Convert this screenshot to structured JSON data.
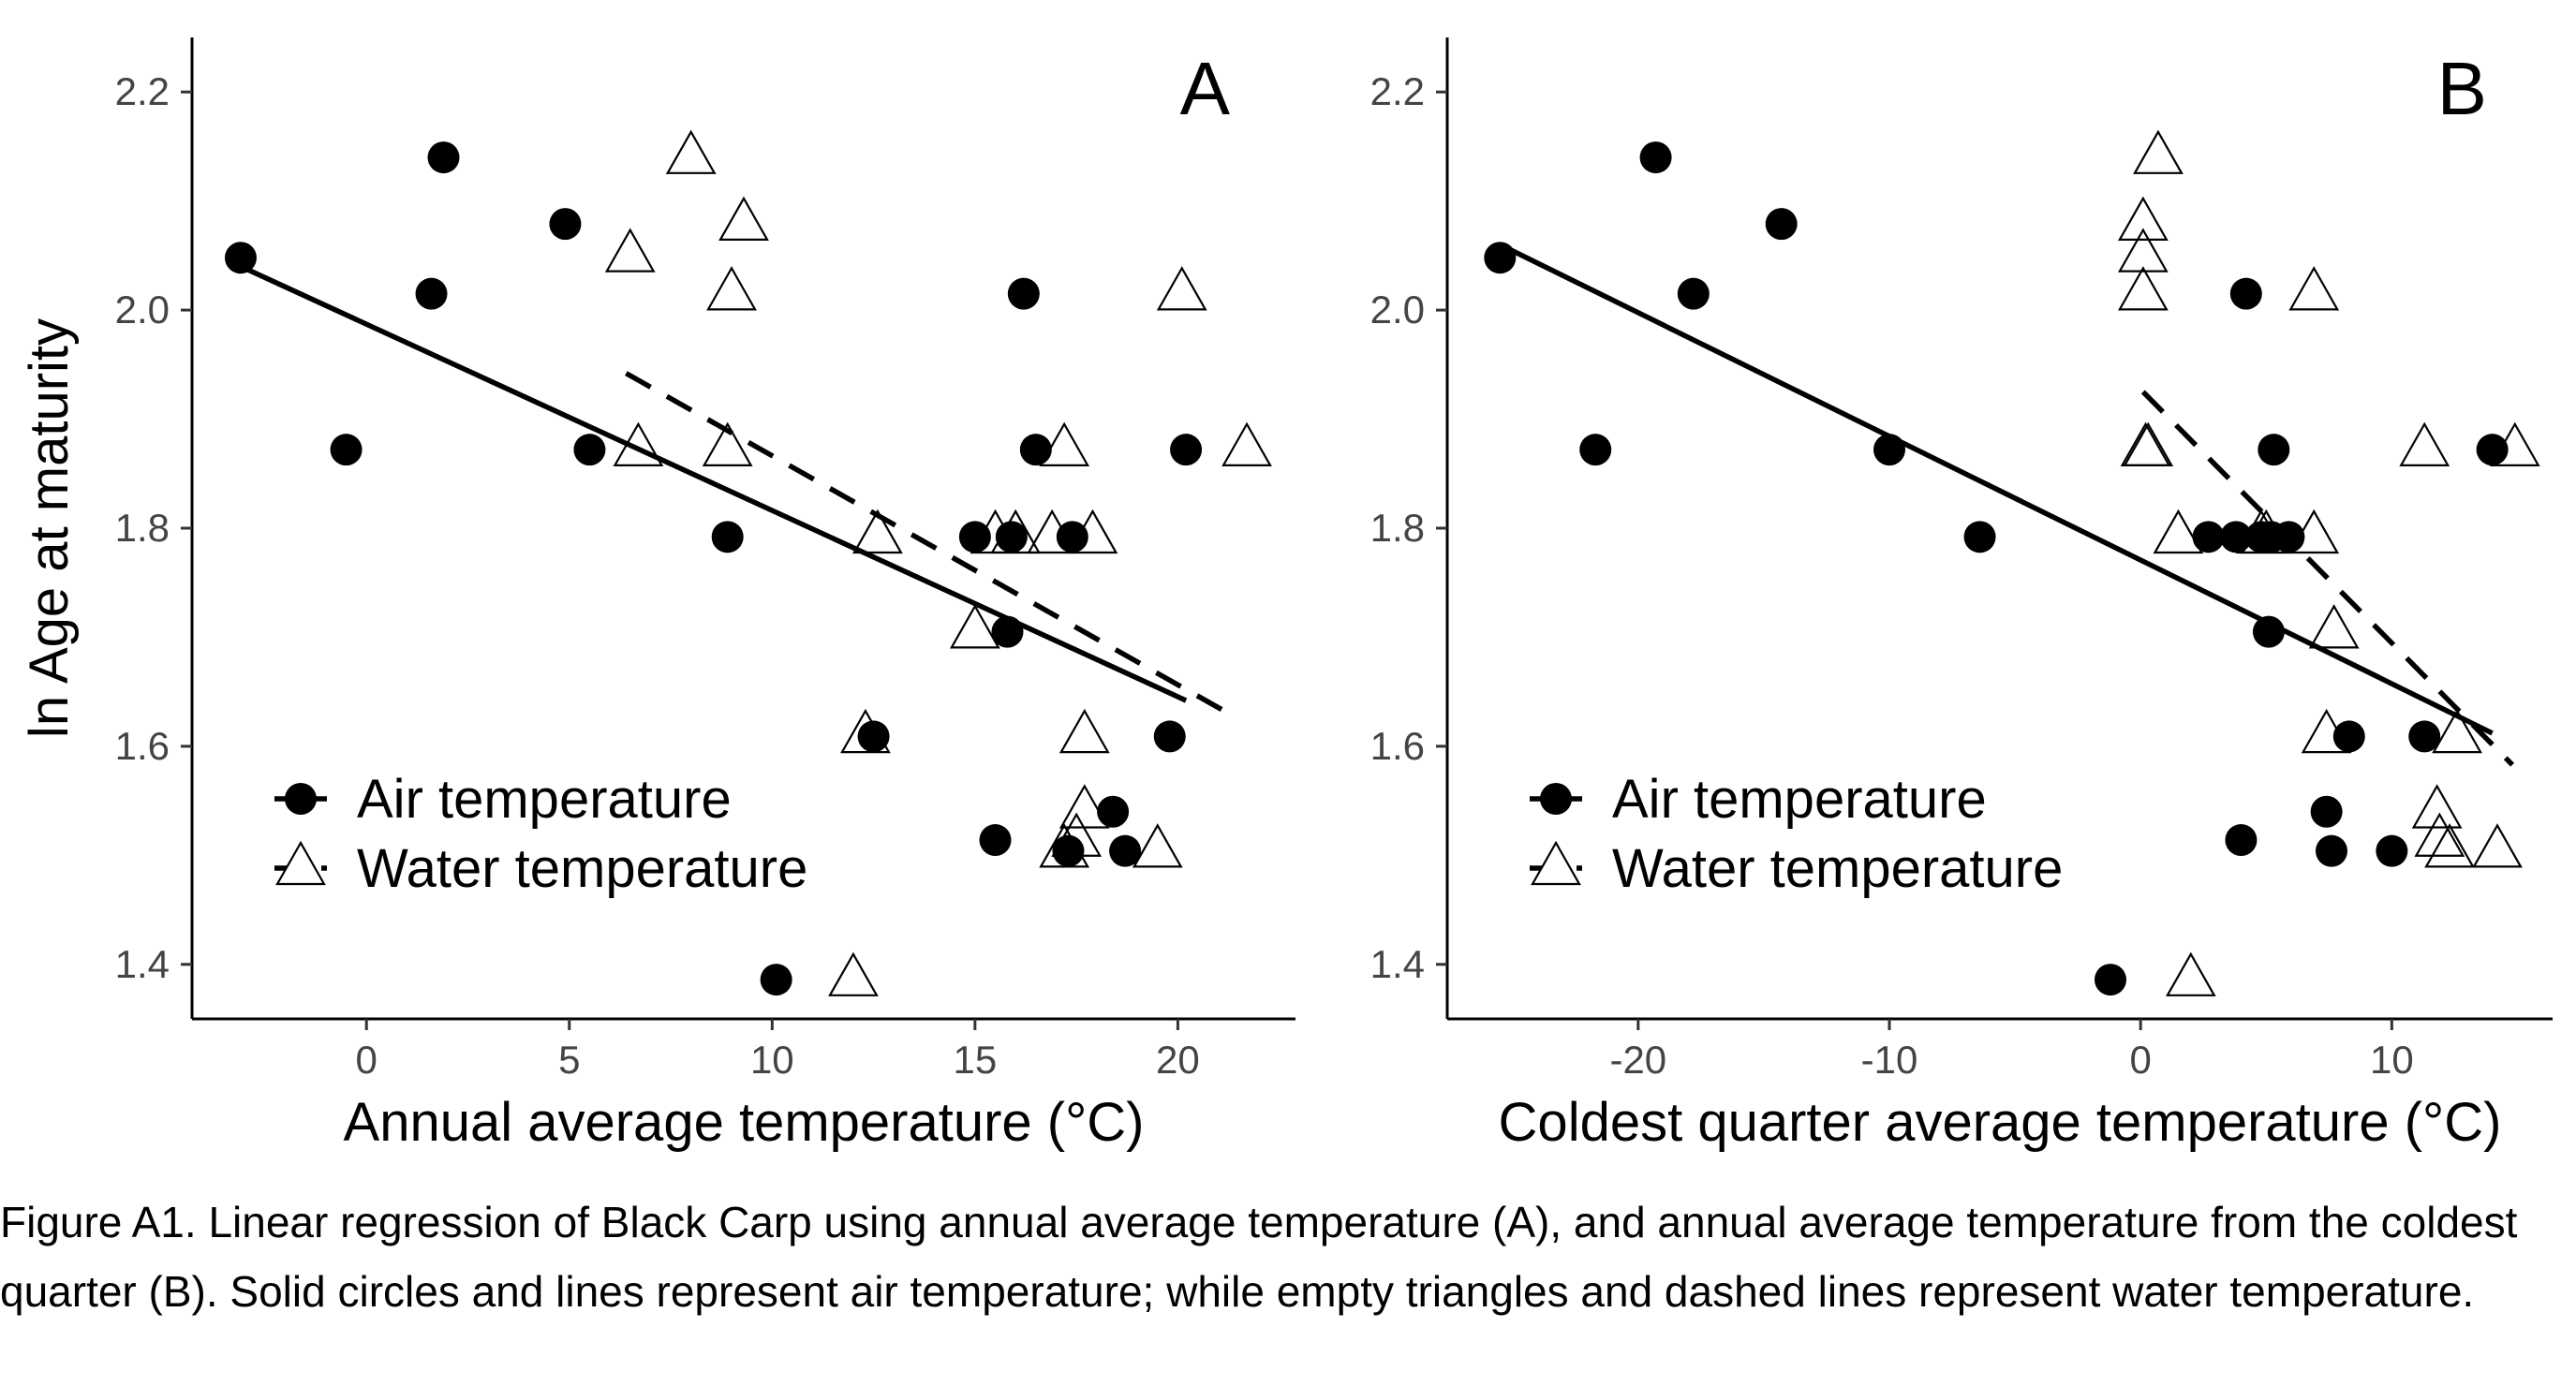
{
  "chart_data": [
    {
      "type": "scatter",
      "panel_label": "A",
      "xlabel": "Annual average temperature (°C)",
      "ylabel": "ln Age at maturity",
      "xlim": [
        -4.3,
        22.9
      ],
      "ylim": [
        1.35,
        2.25
      ],
      "xticks": [
        0,
        5,
        10,
        15,
        20
      ],
      "yticks": [
        1.4,
        1.6,
        1.8,
        2.0,
        2.2
      ],
      "xtick_labels": [
        "0",
        "5",
        "10",
        "15",
        "20"
      ],
      "ytick_labels": [
        "1.4",
        "1.6",
        "1.8",
        "2.0",
        "2.2"
      ],
      "grid": false,
      "legend_position": "bottom-left",
      "series": [
        {
          "name": "Air temperature",
          "marker": "filled-circle",
          "line": "solid",
          "points": [
            [
              -3.1,
              2.048
            ],
            [
              -0.5,
              1.872
            ],
            [
              1.6,
              2.015
            ],
            [
              1.9,
              2.14
            ],
            [
              4.9,
              2.079
            ],
            [
              5.5,
              1.872
            ],
            [
              8.9,
              1.792
            ],
            [
              10.1,
              1.386
            ],
            [
              12.5,
              1.609
            ],
            [
              15.0,
              1.792
            ],
            [
              15.5,
              1.514
            ],
            [
              15.8,
              1.705
            ],
            [
              15.9,
              1.792
            ],
            [
              16.2,
              2.015
            ],
            [
              16.5,
              1.872
            ],
            [
              17.3,
              1.504
            ],
            [
              17.4,
              1.792
            ],
            [
              18.4,
              1.54
            ],
            [
              18.7,
              1.504
            ],
            [
              19.8,
              1.609
            ],
            [
              20.2,
              1.872
            ]
          ],
          "fit": [
            [
              -3.1,
              2.04
            ],
            [
              20.2,
              1.642
            ]
          ]
        },
        {
          "name": "Water temperature",
          "marker": "open-triangle",
          "line": "dashed",
          "points": [
            [
              6.5,
              2.05
            ],
            [
              6.7,
              1.872
            ],
            [
              8.0,
              2.14
            ],
            [
              8.9,
              1.872
            ],
            [
              9.0,
              2.015
            ],
            [
              9.3,
              2.079
            ],
            [
              12.0,
              1.386
            ],
            [
              12.3,
              1.609
            ],
            [
              12.6,
              1.792
            ],
            [
              15.0,
              1.705
            ],
            [
              15.5,
              1.792
            ],
            [
              16.0,
              1.792
            ],
            [
              16.9,
              1.792
            ],
            [
              17.2,
              1.872
            ],
            [
              17.2,
              1.504
            ],
            [
              17.5,
              1.514
            ],
            [
              17.7,
              1.54
            ],
            [
              17.7,
              1.609
            ],
            [
              17.9,
              1.792
            ],
            [
              19.5,
              1.504
            ],
            [
              20.1,
              2.015
            ],
            [
              21.7,
              1.872
            ]
          ],
          "fit": [
            [
              6.4,
              1.942
            ],
            [
              21.4,
              1.627
            ]
          ]
        }
      ]
    },
    {
      "type": "scatter",
      "panel_label": "B",
      "xlabel": "Coldest quarter average temperature (°C)",
      "ylabel": "",
      "xlim": [
        -27.6,
        16.4
      ],
      "ylim": [
        1.35,
        2.25
      ],
      "xticks": [
        -20,
        -10,
        0,
        10
      ],
      "yticks": [
        1.4,
        1.6,
        1.8,
        2.0,
        2.2
      ],
      "xtick_labels": [
        "-20",
        "-10",
        "0",
        "10"
      ],
      "ytick_labels": [
        "1.4",
        "1.6",
        "1.8",
        "2.0",
        "2.2"
      ],
      "grid": false,
      "legend_position": "bottom-left",
      "series": [
        {
          "name": "Air temperature",
          "marker": "filled-circle",
          "line": "solid",
          "points": [
            [
              -25.5,
              2.048
            ],
            [
              -21.7,
              1.872
            ],
            [
              -19.3,
              2.14
            ],
            [
              -17.8,
              2.015
            ],
            [
              -14.3,
              2.079
            ],
            [
              -10.0,
              1.872
            ],
            [
              -6.4,
              1.792
            ],
            [
              -1.2,
              1.386
            ],
            [
              2.7,
              1.792
            ],
            [
              3.8,
              1.792
            ],
            [
              4.0,
              1.514
            ],
            [
              4.2,
              2.015
            ],
            [
              4.8,
              1.792
            ],
            [
              5.1,
              1.705
            ],
            [
              5.2,
              1.792
            ],
            [
              5.3,
              1.872
            ],
            [
              5.9,
              1.792
            ],
            [
              7.4,
              1.54
            ],
            [
              7.6,
              1.504
            ],
            [
              8.3,
              1.609
            ],
            [
              10.0,
              1.504
            ],
            [
              11.3,
              1.609
            ],
            [
              14.0,
              1.872
            ]
          ],
          "fit": [
            [
              -25.5,
              2.06
            ],
            [
              14.0,
              1.612
            ]
          ]
        },
        {
          "name": "Water temperature",
          "marker": "open-triangle",
          "line": "dashed",
          "points": [
            [
              0.1,
              2.079
            ],
            [
              0.1,
              2.05
            ],
            [
              0.1,
              2.015
            ],
            [
              0.2,
              1.872
            ],
            [
              0.3,
              1.872
            ],
            [
              0.7,
              2.14
            ],
            [
              1.5,
              1.792
            ],
            [
              2.0,
              1.386
            ],
            [
              4.8,
              1.792
            ],
            [
              5.0,
              1.792
            ],
            [
              6.9,
              1.792
            ],
            [
              6.9,
              2.015
            ],
            [
              7.4,
              1.609
            ],
            [
              7.7,
              1.705
            ],
            [
              11.3,
              1.872
            ],
            [
              11.8,
              1.54
            ],
            [
              11.9,
              1.514
            ],
            [
              12.3,
              1.504
            ],
            [
              12.6,
              1.609
            ],
            [
              14.2,
              1.504
            ],
            [
              14.9,
              1.872
            ]
          ],
          "fit": [
            [
              0.1,
              1.925
            ],
            [
              14.8,
              1.583
            ]
          ]
        }
      ]
    }
  ],
  "caption": "Figure A1. Linear regression of Black Carp using annual average temperature (A), and annual average temperature from the coldest quarter (B). Solid circles and lines represent air temperature; while empty triangles and dashed lines represent water temperature."
}
